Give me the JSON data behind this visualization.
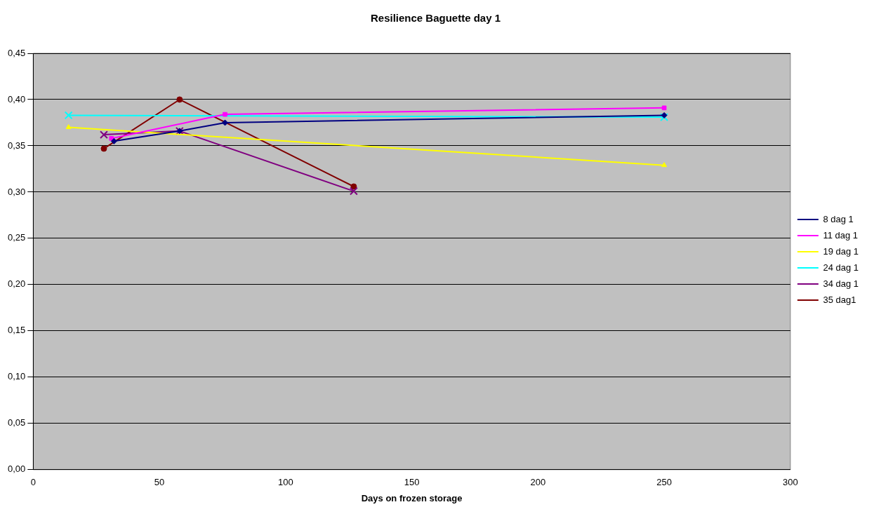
{
  "chart_data": {
    "type": "line",
    "title": "Resilience Baguette day 1",
    "xlabel": "Days on frozen storage",
    "xlim": [
      0,
      300
    ],
    "xticks": [
      0,
      50,
      100,
      150,
      200,
      250,
      300
    ],
    "ylim": [
      0,
      0.45
    ],
    "yticks": [
      {
        "value": 0,
        "label": "0,00"
      },
      {
        "value": 0.05,
        "label": "0,05"
      },
      {
        "value": 0.1,
        "label": "0,10"
      },
      {
        "value": 0.15,
        "label": "0,15"
      },
      {
        "value": 0.2,
        "label": "0,20"
      },
      {
        "value": 0.25,
        "label": "0,25"
      },
      {
        "value": 0.3,
        "label": "0,30"
      },
      {
        "value": 0.35,
        "label": "0,35"
      },
      {
        "value": 0.4,
        "label": "0,40"
      },
      {
        "value": 0.45,
        "label": "0,45"
      }
    ],
    "grid": "y",
    "legend": "right",
    "series": [
      {
        "name": "8 dag 1",
        "color": "#000080",
        "marker": "diamond",
        "x": [
          32,
          58,
          76,
          250
        ],
        "values": [
          0.355,
          0.366,
          0.375,
          0.383
        ]
      },
      {
        "name": "11 dag 1",
        "color": "#ff00ff",
        "marker": "square",
        "x": [
          31,
          76,
          250
        ],
        "values": [
          0.358,
          0.384,
          0.391
        ]
      },
      {
        "name": "19 dag 1",
        "color": "#ffff00",
        "marker": "triangle",
        "x": [
          14,
          250
        ],
        "values": [
          0.37,
          0.329
        ]
      },
      {
        "name": "24 dag 1",
        "color": "#00ffff",
        "marker": "cross",
        "x": [
          14,
          250
        ],
        "values": [
          0.383,
          0.381
        ]
      },
      {
        "name": "34 dag 1",
        "color": "#800080",
        "marker": "cross",
        "x": [
          28,
          58,
          127
        ],
        "values": [
          0.362,
          0.366,
          0.301
        ]
      },
      {
        "name": "35 dag1",
        "color": "#800000",
        "marker": "circle",
        "x": [
          28,
          58,
          127
        ],
        "values": [
          0.347,
          0.4,
          0.306
        ]
      }
    ]
  }
}
